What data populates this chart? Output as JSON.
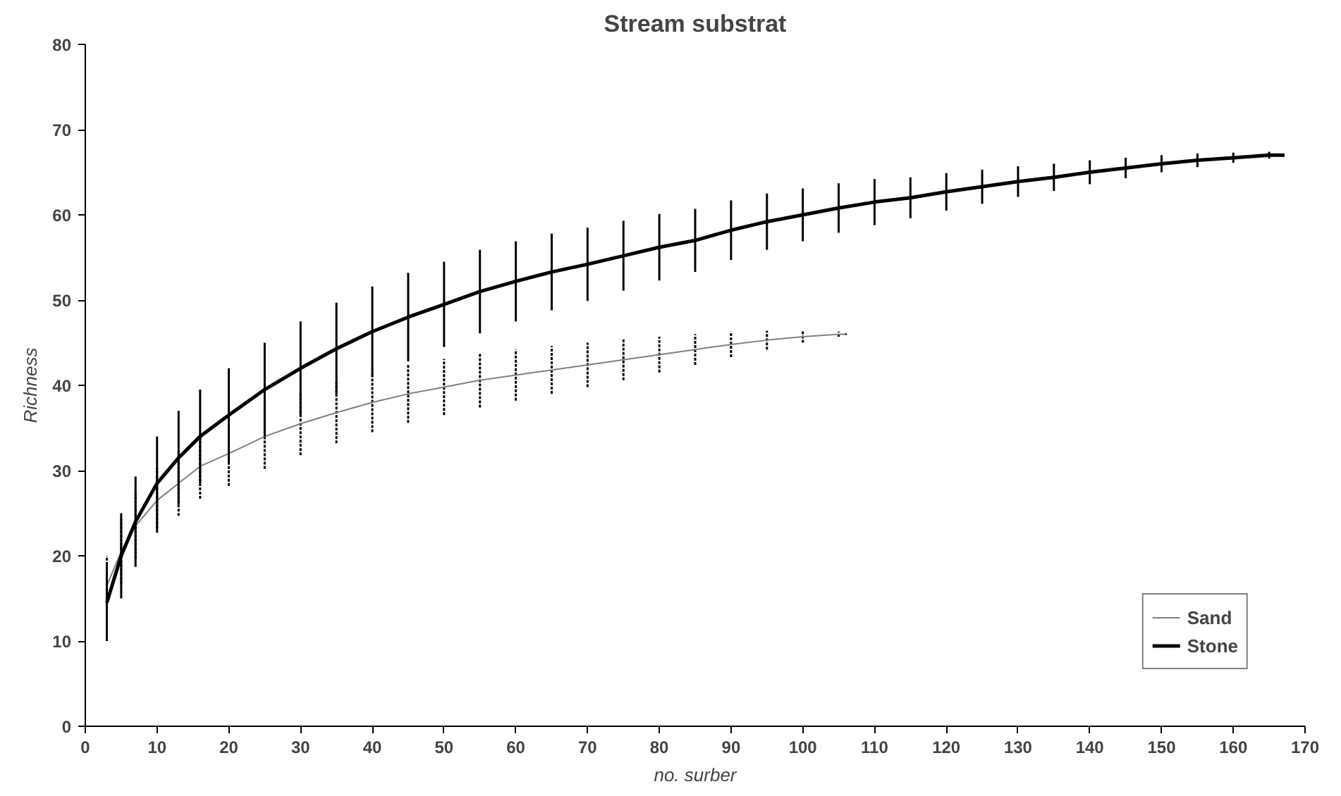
{
  "chart_data": {
    "type": "line",
    "title": "Stream substrat",
    "xlabel": "no. surber",
    "ylabel": "Richness",
    "xlim": [
      0,
      170
    ],
    "xticks": [
      0,
      10,
      20,
      30,
      40,
      50,
      60,
      70,
      80,
      90,
      100,
      110,
      120,
      130,
      140,
      150,
      160,
      170
    ],
    "ylim": [
      0,
      80
    ],
    "yticks": [
      0,
      10,
      20,
      30,
      40,
      50,
      60,
      70,
      80
    ],
    "grid": false,
    "legend": "bottom right",
    "marker": "none",
    "series": [
      {
        "name": "Sand",
        "color": "#808080",
        "line_style": "solid",
        "x": [
          3,
          5,
          7,
          10,
          13,
          16,
          20,
          25,
          30,
          35,
          40,
          45,
          50,
          55,
          60,
          65,
          70,
          75,
          80,
          85,
          90,
          95,
          100,
          105,
          106
        ],
        "values": [
          16.5,
          20.5,
          23.5,
          26.5,
          28.5,
          30.5,
          32,
          34,
          35.5,
          36.8,
          38,
          39,
          39.8,
          40.6,
          41.2,
          41.8,
          42.4,
          43,
          43.6,
          44.2,
          44.8,
          45.3,
          45.7,
          46,
          46
        ],
        "errors": [
          3.5,
          3.8,
          3.8,
          3.8,
          3.8,
          3.8,
          3.8,
          3.8,
          3.7,
          3.6,
          3.5,
          3.4,
          3.3,
          3.2,
          3,
          2.8,
          2.6,
          2.4,
          2.1,
          1.8,
          1.5,
          1.1,
          0.7,
          0.3,
          0.1
        ]
      },
      {
        "name": "Stone",
        "color": "#000000",
        "line_style": "solid",
        "x": [
          3,
          5,
          7,
          10,
          13,
          16,
          20,
          25,
          30,
          35,
          40,
          45,
          50,
          55,
          60,
          65,
          70,
          75,
          80,
          85,
          90,
          95,
          100,
          105,
          110,
          115,
          120,
          125,
          130,
          135,
          140,
          145,
          150,
          155,
          160,
          165,
          167
        ],
        "values": [
          14.5,
          20,
          24,
          28.5,
          31.5,
          34,
          36.5,
          39.5,
          42,
          44.3,
          46.3,
          48,
          49.5,
          51,
          52.2,
          53.3,
          54.2,
          55.2,
          56.2,
          57,
          58.2,
          59.2,
          60,
          60.8,
          61.5,
          62,
          62.7,
          63.3,
          63.9,
          64.4,
          65,
          65.5,
          66,
          66.4,
          66.7,
          67,
          67
        ],
        "errors": [
          4.5,
          5,
          5.3,
          5.5,
          5.5,
          5.5,
          5.5,
          5.5,
          5.5,
          5.4,
          5.3,
          5.2,
          5,
          4.9,
          4.7,
          4.5,
          4.3,
          4.1,
          3.9,
          3.7,
          3.5,
          3.3,
          3.1,
          2.9,
          2.7,
          2.4,
          2.2,
          2,
          1.8,
          1.6,
          1.4,
          1.2,
          1,
          0.8,
          0.6,
          0.4,
          0.2
        ]
      }
    ]
  }
}
